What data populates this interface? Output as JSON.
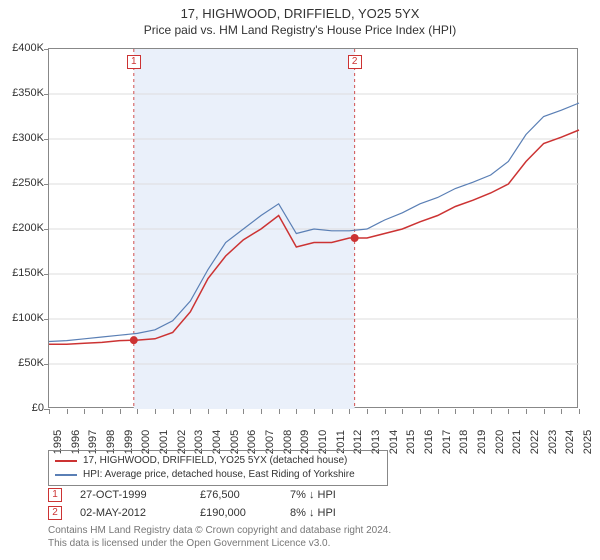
{
  "title": "17, HIGHWOOD, DRIFFIELD, YO25 5YX",
  "subtitle": "Price paid vs. HM Land Registry's House Price Index (HPI)",
  "chart": {
    "type": "line",
    "background_color": "#ffffff",
    "plot_border_color": "#888888",
    "grid_color": "#dddddd",
    "shaded_band_color": "#eaf0fa",
    "marker_line_color": "#d05050",
    "marker_line_dash": "3,3",
    "marker_box_border": "#cc3333",
    "marker_box_text": "#cc3333",
    "y_axis": {
      "min": 0,
      "max": 400000,
      "tick_step": 50000,
      "labels": [
        "£0",
        "£50K",
        "£100K",
        "£150K",
        "£200K",
        "£250K",
        "£300K",
        "£350K",
        "£400K"
      ],
      "font_size": 11
    },
    "x_axis": {
      "min": 1995,
      "max": 2025,
      "values": [
        1995,
        1996,
        1997,
        1998,
        1999,
        2000,
        2001,
        2002,
        2003,
        2004,
        2005,
        2006,
        2007,
        2008,
        2009,
        2010,
        2011,
        2012,
        2013,
        2014,
        2015,
        2016,
        2017,
        2018,
        2019,
        2020,
        2021,
        2022,
        2023,
        2024,
        2025
      ],
      "font_size": 11,
      "label_rotation": -90
    },
    "series": [
      {
        "name": "price_paid",
        "color": "#cc3333",
        "width": 1.5,
        "points_y": [
          72000,
          72000,
          73000,
          74000,
          76000,
          76500,
          78000,
          85000,
          108000,
          145000,
          170000,
          188000,
          200000,
          215000,
          180000,
          185000,
          185000,
          190000,
          190000,
          195000,
          200000,
          208000,
          215000,
          225000,
          232000,
          240000,
          250000,
          275000,
          295000,
          302000,
          310000
        ]
      },
      {
        "name": "hpi",
        "color": "#5a7fb5",
        "width": 1.2,
        "points_y": [
          75000,
          76000,
          78000,
          80000,
          82000,
          84000,
          88000,
          98000,
          120000,
          155000,
          185000,
          200000,
          215000,
          228000,
          195000,
          200000,
          198000,
          198000,
          200000,
          210000,
          218000,
          228000,
          235000,
          245000,
          252000,
          260000,
          275000,
          305000,
          325000,
          332000,
          340000
        ]
      }
    ],
    "markers": [
      {
        "num": "1",
        "year": 1999.8,
        "y": 76500,
        "point_color": "#cc3333"
      },
      {
        "num": "2",
        "year": 2012.3,
        "y": 190000,
        "point_color": "#cc3333"
      }
    ],
    "shaded_range": {
      "start": 1999.8,
      "end": 2012.3
    }
  },
  "legend": {
    "border_color": "#888888",
    "font_size": 10,
    "items": [
      {
        "color": "#cc3333",
        "label": "17, HIGHWOOD, DRIFFIELD, YO25 5YX (detached house)"
      },
      {
        "color": "#5a7fb5",
        "label": "HPI: Average price, detached house, East Riding of Yorkshire"
      }
    ]
  },
  "sales": [
    {
      "num": "1",
      "date": "27-OCT-1999",
      "price": "£76,500",
      "diff": "7% ↓ HPI"
    },
    {
      "num": "2",
      "date": "02-MAY-2012",
      "price": "£190,000",
      "diff": "8% ↓ HPI"
    }
  ],
  "footer": {
    "line1": "Contains HM Land Registry data © Crown copyright and database right 2024.",
    "line2": "This data is licensed under the Open Government Licence v3.0.",
    "color": "#777777",
    "font_size": 10
  }
}
